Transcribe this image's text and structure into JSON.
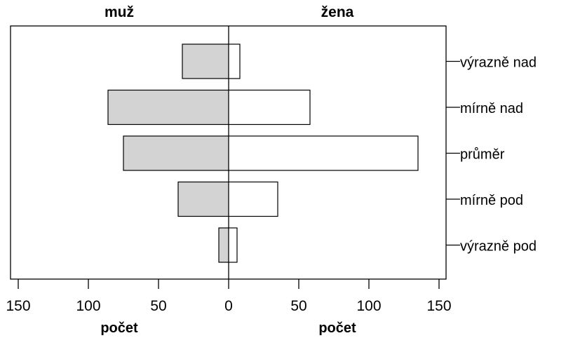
{
  "chart_data": {
    "type": "bar",
    "orientation": "horizontal",
    "layout": "population-pyramid",
    "panels": [
      {
        "name": "muž",
        "side": "left",
        "color": "#d3d3d3"
      },
      {
        "name": "žena",
        "side": "right",
        "color": "#ffffff"
      }
    ],
    "categories": [
      "výrazně nad",
      "mírně nad",
      "průměr",
      "mírně pod",
      "výrazně pod"
    ],
    "series": [
      {
        "name": "muž",
        "values": [
          33,
          86,
          75,
          36,
          7
        ]
      },
      {
        "name": "žena",
        "values": [
          8,
          58,
          135,
          35,
          6
        ]
      }
    ],
    "xlabel_left": "počet",
    "xlabel_right": "počet",
    "xlim": [
      0,
      150
    ],
    "xticks_left": [
      "150",
      "100",
      "50",
      "0"
    ],
    "xticks_right": [
      "50",
      "100",
      "150"
    ],
    "grid": false,
    "legend": "none"
  }
}
